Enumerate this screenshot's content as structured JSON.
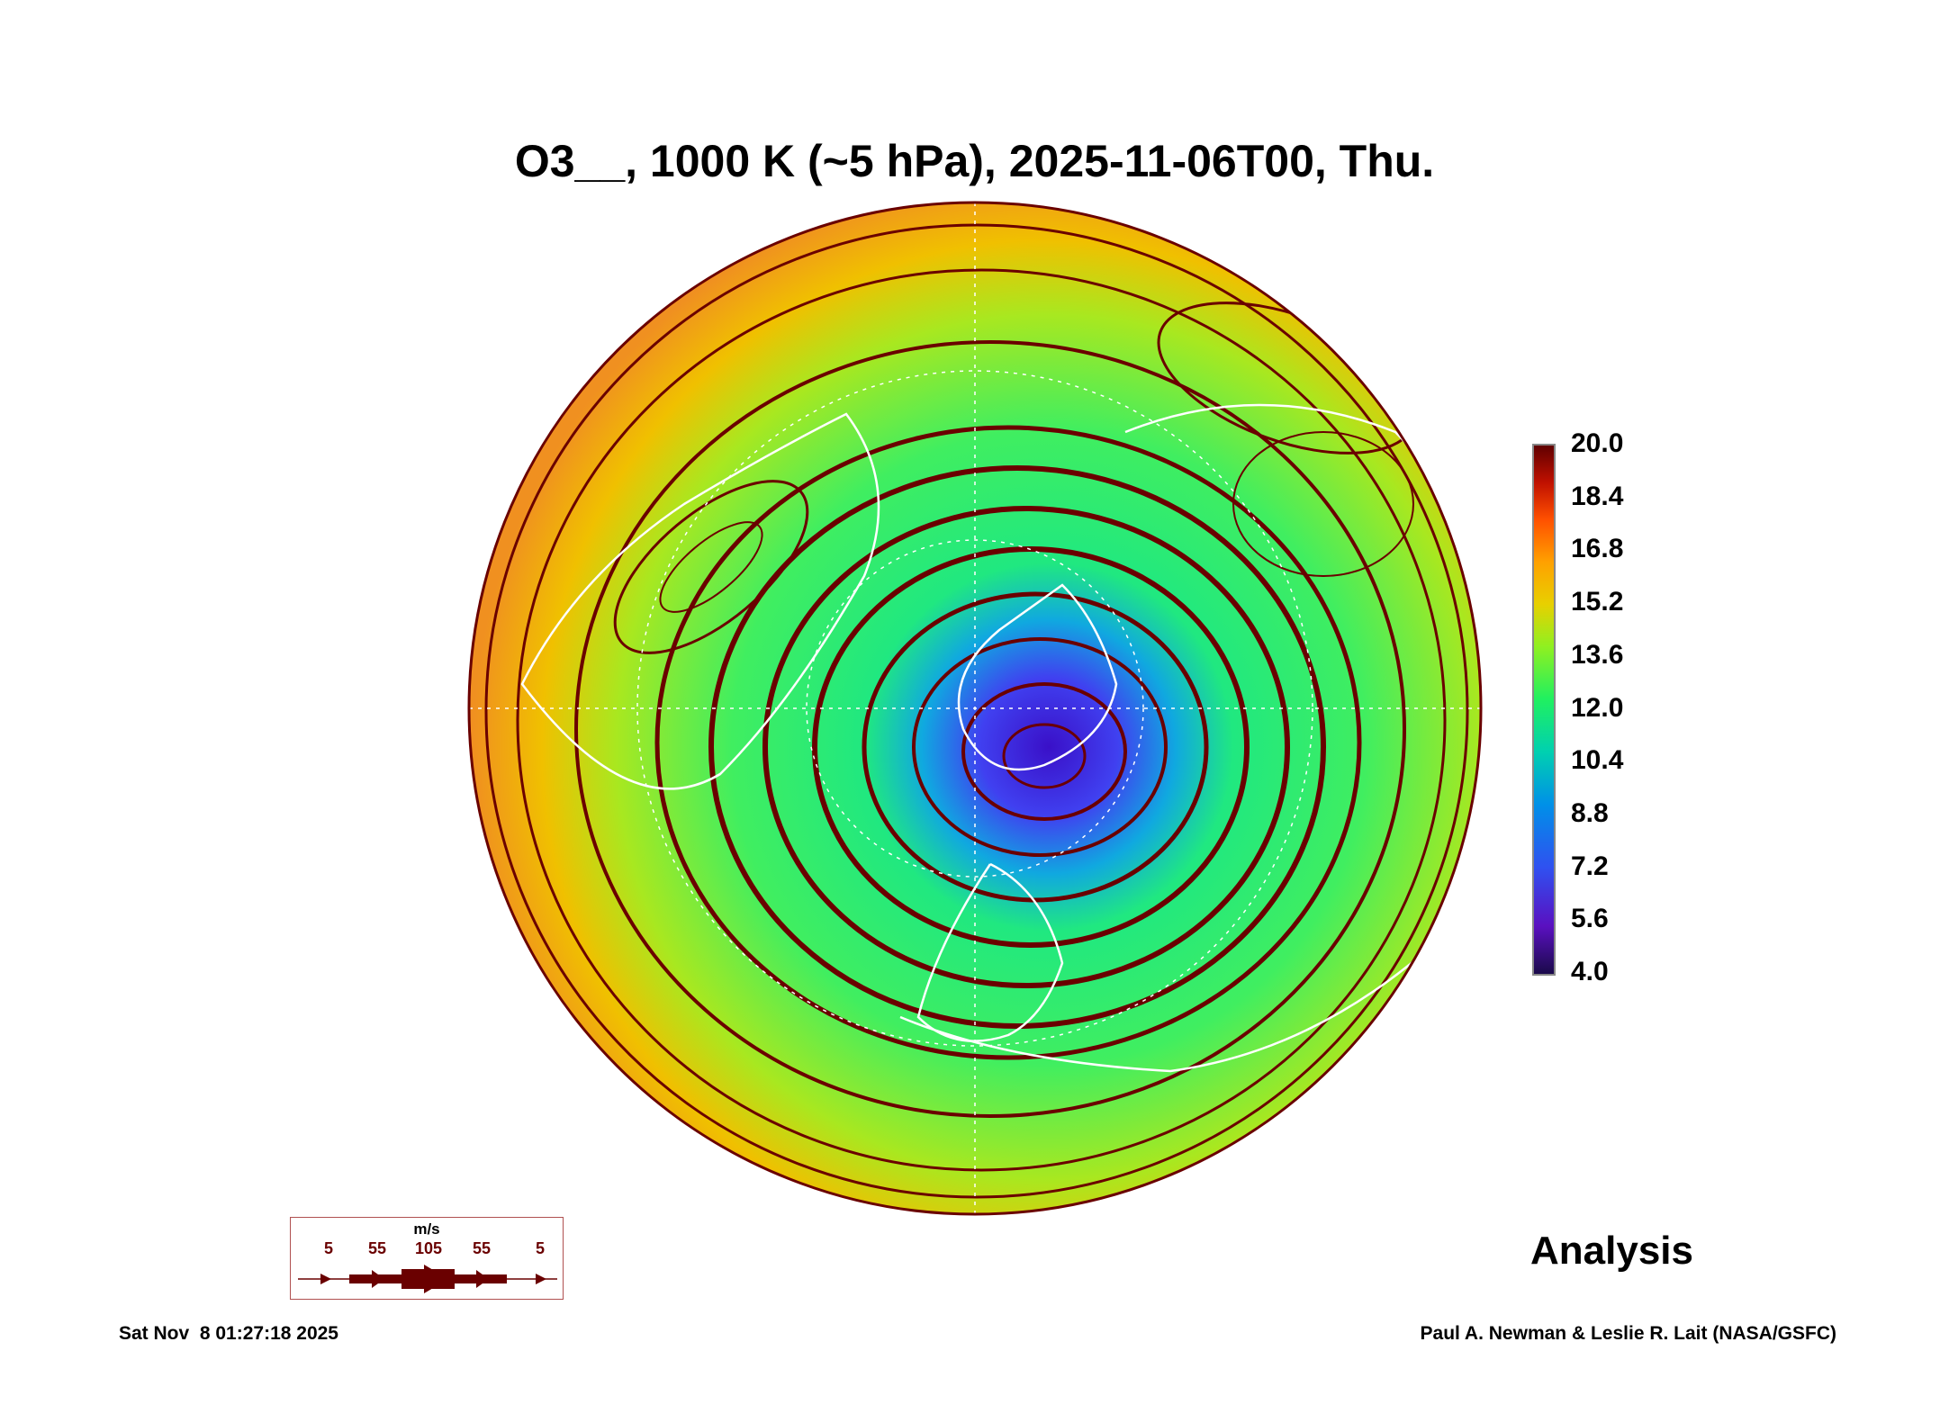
{
  "title": "O3__, 1000 K (~5 hPa), 2025-11-06T00, Thu.",
  "colorbar": {
    "ticks": [
      "20.0",
      "18.4",
      "16.8",
      "15.2",
      "13.6",
      "12.0",
      "10.4",
      "8.8",
      "7.2",
      "5.6",
      "4.0"
    ],
    "min": 4.0,
    "max": 20.0
  },
  "wind_legend": {
    "unit": "m/s",
    "speeds": [
      "5",
      "55",
      "105",
      "55",
      "5"
    ],
    "color": "#600000"
  },
  "label_analysis": "Analysis",
  "footer": {
    "timestamp": "Sat Nov  8 01:27:18 2025",
    "credit": "Paul A. Newman & Leslie R. Lait (NASA/GSFC)"
  }
}
